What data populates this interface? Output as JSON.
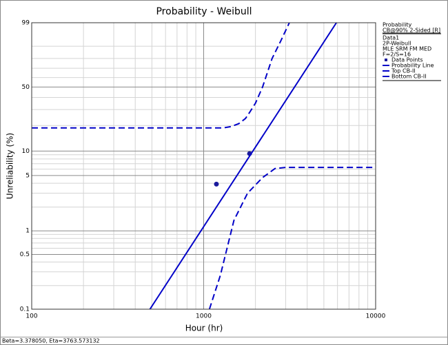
{
  "chart_data": {
    "type": "line",
    "title": "Probability - Weibull",
    "x_label": "Hour (hr)",
    "y_label": "Unreliability (%)",
    "xscale": "log",
    "yscale": "weibull",
    "xlim": [
      100,
      10000
    ],
    "xticks": [
      100,
      1000,
      10000
    ],
    "xminorticks": [
      200,
      300,
      400,
      500,
      600,
      700,
      800,
      900,
      2000,
      3000,
      4000,
      5000,
      6000,
      7000,
      8000,
      9000
    ],
    "ylim": [
      0.1,
      99
    ],
    "yticks": [
      0.1,
      0.5,
      1,
      5,
      10,
      50,
      99
    ],
    "yminorticks": [
      0.2,
      0.3,
      0.4,
      0.6,
      0.7,
      0.8,
      0.9,
      2,
      3,
      4,
      6,
      7,
      8,
      9,
      20,
      30,
      40,
      60,
      70,
      80,
      90
    ],
    "grid": true,
    "legend_header": [
      "Probability",
      "CB@90% 2-Sided [R]",
      "Data1",
      "2P-Weibull",
      "MLE SRM FM MED",
      "F=2/S=16"
    ],
    "footer": "Beta=3.378050, Eta=3763.573132",
    "series": [
      {
        "name": "Data Points",
        "color": "#1a1a9c",
        "marker": true,
        "x": [
          1186,
          1849
        ],
        "values": [
          3.9,
          9.3
        ]
      },
      {
        "name": "Probability Line",
        "color": "#0000c8",
        "dashed": false,
        "x": [
          487,
          5915
        ],
        "values": [
          0.1,
          99
        ]
      },
      {
        "name": "Top CB-II",
        "color": "#0000c8",
        "dashed": true,
        "x": [
          100,
          1300,
          1450,
          1600,
          1750,
          1850,
          2000,
          2200,
          2500,
          2800,
          3150
        ],
        "values": [
          18.8,
          18.8,
          19.5,
          21,
          24,
          28,
          35,
          50,
          80,
          93,
          99
        ]
      },
      {
        "name": "Bottom CB-II",
        "color": "#0000c8",
        "dashed": true,
        "x": [
          1080,
          1250,
          1500,
          1800,
          2200,
          2600,
          3000,
          10000
        ],
        "values": [
          0.1,
          0.27,
          1.36,
          3,
          4.7,
          6.1,
          6.3,
          6.3
        ]
      }
    ]
  }
}
